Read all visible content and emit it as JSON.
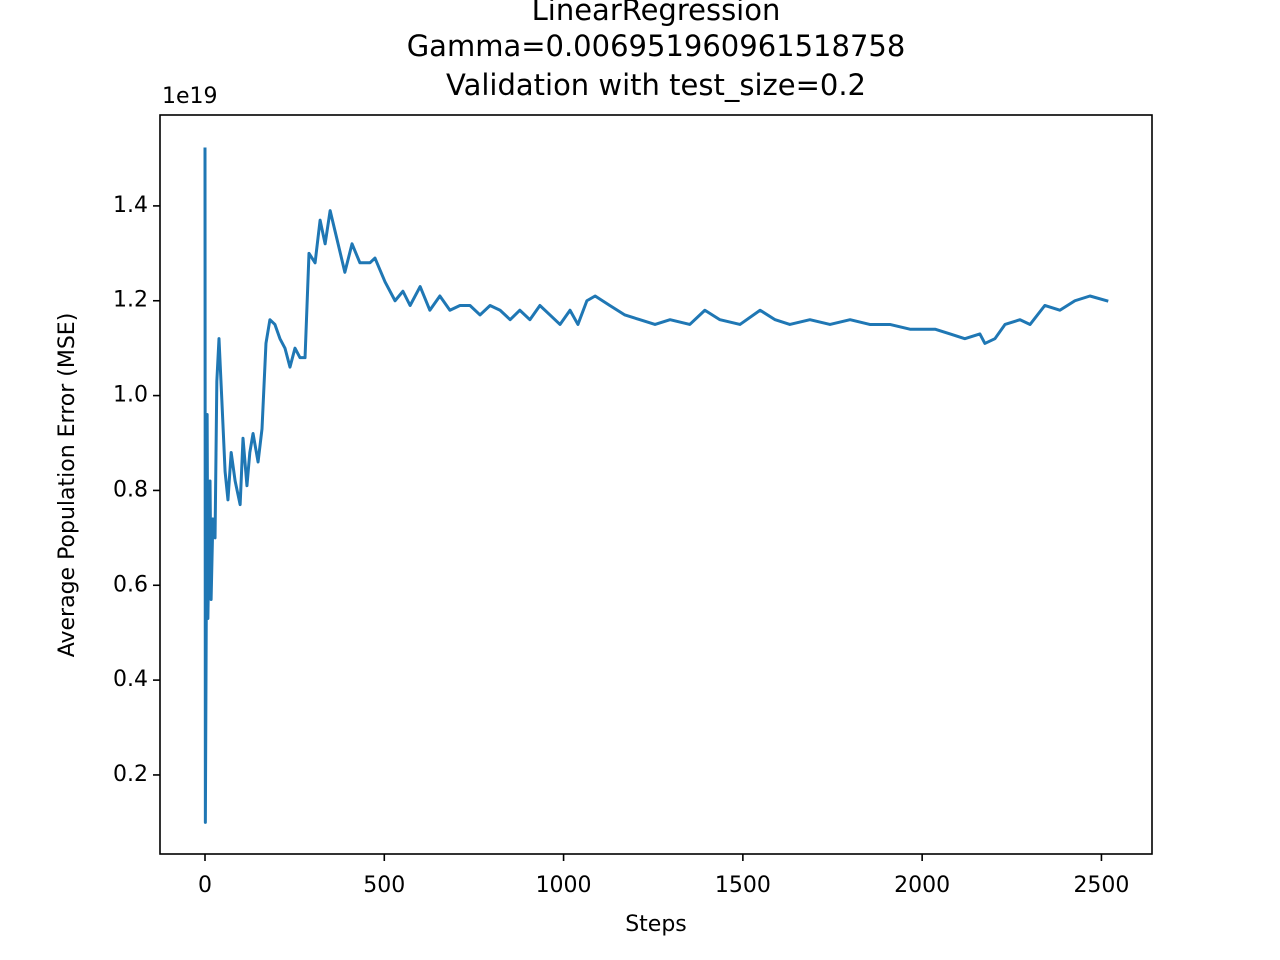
{
  "chart_data": {
    "type": "line",
    "title": "LinearRegression",
    "subtitle": [
      "Gamma=0.006951960961518758",
      "Validation with test_size=0.2"
    ],
    "x_label": "Steps",
    "y_label": "Average Population Error (MSE)",
    "y_offset_label": "1e19",
    "xlim": [
      -125.5,
      2641
    ],
    "ylim": [
      0.0333,
      1.5917
    ],
    "xticks": [
      0,
      500,
      1000,
      1500,
      2000,
      2500
    ],
    "yticks": [
      0.2,
      0.4,
      0.6,
      0.8,
      {
        "value": 1,
        "label": "1.0"
      },
      1.2,
      1.4
    ],
    "grid": false,
    "series": [
      {
        "color": "#1f77b4",
        "x": [
          0,
          1,
          6,
          8,
          14,
          17,
          22,
          28,
          33,
          39,
          47,
          56,
          64,
          73,
          84,
          98,
          106,
          117,
          125,
          134,
          148,
          159,
          170,
          181,
          195,
          209,
          223,
          237,
          251,
          265,
          279,
          290,
          307,
          321,
          335,
          349,
          368,
          390,
          410,
          432,
          460,
          474,
          502,
          530,
          552,
          572,
          600,
          627,
          655,
          683,
          711,
          739,
          767,
          795,
          823,
          851,
          878,
          906,
          934,
          962,
          990,
          1018,
          1040,
          1065,
          1088,
          1129,
          1171,
          1213,
          1255,
          1297,
          1352,
          1394,
          1436,
          1492,
          1548,
          1590,
          1631,
          1687,
          1743,
          1799,
          1854,
          1910,
          1966,
          1994,
          2036,
          2078,
          2119,
          2161,
          2175,
          2203,
          2231,
          2273,
          2301,
          2342,
          2384,
          2426,
          2468,
          2515
        ],
        "values": [
          1.52,
          0.1,
          0.96,
          0.53,
          0.82,
          0.57,
          0.74,
          0.7,
          1.03,
          1.12,
          0.99,
          0.84,
          0.78,
          0.88,
          0.82,
          0.77,
          0.91,
          0.81,
          0.88,
          0.92,
          0.86,
          0.93,
          1.11,
          1.16,
          1.15,
          1.12,
          1.1,
          1.06,
          1.1,
          1.08,
          1.08,
          1.3,
          1.28,
          1.37,
          1.32,
          1.39,
          1.33,
          1.26,
          1.32,
          1.28,
          1.28,
          1.29,
          1.24,
          1.2,
          1.22,
          1.19,
          1.23,
          1.18,
          1.21,
          1.18,
          1.19,
          1.19,
          1.17,
          1.19,
          1.18,
          1.16,
          1.18,
          1.16,
          1.19,
          1.17,
          1.15,
          1.18,
          1.15,
          1.2,
          1.21,
          1.19,
          1.17,
          1.16,
          1.15,
          1.16,
          1.15,
          1.18,
          1.16,
          1.15,
          1.18,
          1.16,
          1.15,
          1.16,
          1.15,
          1.16,
          1.15,
          1.15,
          1.14,
          1.14,
          1.14,
          1.13,
          1.12,
          1.13,
          1.11,
          1.12,
          1.15,
          1.16,
          1.15,
          1.19,
          1.18,
          1.2,
          1.21,
          1.2
        ]
      }
    ]
  }
}
